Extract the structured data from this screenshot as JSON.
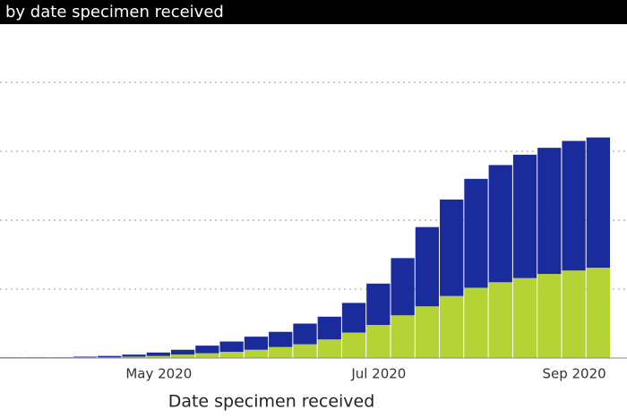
{
  "chart_data": {
    "type": "stacked_bar",
    "title": "by date specimen received",
    "x_label": "Date specimen received",
    "categories": [
      null,
      null,
      null,
      null,
      null,
      null,
      "May 2020",
      null,
      null,
      null,
      null,
      null,
      null,
      null,
      null,
      "Jul 2020",
      null,
      null,
      null,
      null,
      null,
      null,
      null,
      "Sep 2020",
      null
    ],
    "series": [
      {
        "color": "#b5d334",
        "values": [
          0,
          0,
          0,
          0.01,
          0.01,
          0.02,
          0.03,
          0.05,
          0.07,
          0.09,
          0.12,
          0.16,
          0.2,
          0.27,
          0.37,
          0.48,
          0.62,
          0.75,
          0.9,
          1.02,
          1.1,
          1.16,
          1.22,
          1.27,
          1.31
        ]
      },
      {
        "color": "#1a2b9c",
        "values": [
          0.01,
          0.01,
          0.01,
          0.01,
          0.02,
          0.03,
          0.05,
          0.07,
          0.11,
          0.15,
          0.19,
          0.22,
          0.3,
          0.33,
          0.43,
          0.6,
          0.83,
          1.15,
          1.4,
          1.58,
          1.7,
          1.79,
          1.83,
          1.88,
          1.89
        ]
      }
    ],
    "ylim": [
      0,
      5
    ],
    "yticks": [
      1,
      2,
      3,
      4
    ],
    "grid": true
  }
}
